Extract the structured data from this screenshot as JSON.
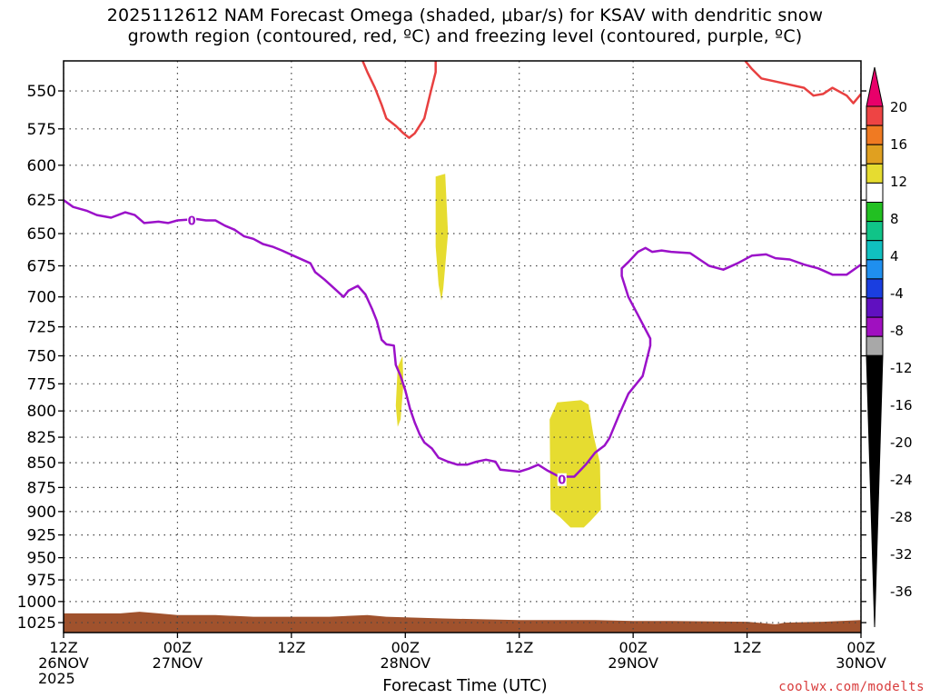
{
  "chart_data": {
    "type": "contour",
    "title": "2025112612 NAM Forecast Omega (shaded, μbar/s) for KSAV with dendritic snow\ngrowth region (contoured, red, ºC) and freezing level (contoured, purple, ºC)",
    "xlabel": "Forecast Time (UTC)",
    "credit": "coolwx.com/modelts",
    "y_axis": {
      "label": "",
      "scale": "pressure",
      "range_hPa": [
        531,
        1037
      ],
      "ticks": [
        "550",
        "575",
        "600",
        "625",
        "650",
        "675",
        "700",
        "725",
        "750",
        "775",
        "800",
        "825",
        "850",
        "875",
        "900",
        "925",
        "950",
        "975",
        "1000",
        "1025"
      ]
    },
    "x_axis": {
      "range_hours": [
        0,
        84
      ],
      "ticks": [
        {
          "hour": 0,
          "lines": [
            "12Z",
            "26NOV",
            "2025"
          ]
        },
        {
          "hour": 12,
          "lines": [
            "00Z",
            "27NOV"
          ]
        },
        {
          "hour": 24,
          "lines": [
            "12Z"
          ]
        },
        {
          "hour": 36,
          "lines": [
            "00Z",
            "28NOV"
          ]
        },
        {
          "hour": 48,
          "lines": [
            "12Z"
          ]
        },
        {
          "hour": 60,
          "lines": [
            "00Z",
            "29NOV"
          ]
        },
        {
          "hour": 72,
          "lines": [
            "12Z"
          ]
        },
        {
          "hour": 84,
          "lines": [
            "00Z",
            "30NOV"
          ]
        }
      ]
    },
    "grid": true,
    "colorbar": {
      "placement": "right",
      "levels": [
        "20",
        "16",
        "12",
        "8",
        "4",
        "-4",
        "-8",
        "-12",
        "-16",
        "-20",
        "-24",
        "-28",
        "-32",
        "-36"
      ],
      "colors": [
        "#e8006a",
        "#ee4444",
        "#f07a22",
        "#e0a020",
        "#e6dc30",
        "#ffffff",
        "#22c022",
        "#10c488",
        "#10c0c0",
        "#1f8fef",
        "#1a3ee0",
        "#6010c0",
        "#a010c0",
        "#a8a8a8",
        "#000000"
      ]
    },
    "freezing_level": {
      "color": "#9b11c9",
      "label": "0",
      "points": [
        [
          0,
          625
        ],
        [
          1,
          630
        ],
        [
          2.5,
          633
        ],
        [
          3.5,
          636
        ],
        [
          5,
          638
        ],
        [
          6.5,
          634
        ],
        [
          7.5,
          636
        ],
        [
          8.5,
          642
        ],
        [
          10,
          641
        ],
        [
          11,
          642
        ],
        [
          12,
          640
        ],
        [
          14,
          639
        ],
        [
          15,
          640
        ],
        [
          16,
          640
        ],
        [
          17,
          644
        ],
        [
          18,
          647
        ],
        [
          19,
          652
        ],
        [
          20,
          654
        ],
        [
          21,
          658
        ],
        [
          22,
          660
        ],
        [
          23,
          663
        ],
        [
          24.5,
          668
        ],
        [
          26,
          673
        ],
        [
          26.5,
          680
        ],
        [
          27.5,
          686
        ],
        [
          28.5,
          693
        ],
        [
          29.5,
          700
        ],
        [
          30,
          695
        ],
        [
          31,
          691
        ],
        [
          31.8,
          698
        ],
        [
          32.5,
          710
        ],
        [
          33,
          720
        ],
        [
          33.5,
          736
        ],
        [
          34,
          740
        ],
        [
          34.8,
          741
        ],
        [
          35,
          758
        ],
        [
          35.5,
          768
        ],
        [
          36,
          781
        ],
        [
          36.5,
          798
        ],
        [
          37,
          811
        ],
        [
          37.5,
          822
        ],
        [
          38,
          830
        ],
        [
          38.8,
          836
        ],
        [
          39.5,
          845
        ],
        [
          40.5,
          849
        ],
        [
          41.5,
          852
        ],
        [
          42.5,
          852
        ],
        [
          43.5,
          849
        ],
        [
          44.5,
          847
        ],
        [
          45.5,
          849
        ],
        [
          46,
          857
        ],
        [
          47,
          858
        ],
        [
          48,
          859
        ],
        [
          49,
          856
        ],
        [
          50,
          852
        ],
        [
          51,
          858
        ],
        [
          52,
          863
        ],
        [
          53,
          864
        ],
        [
          53.8,
          864
        ],
        [
          54,
          862
        ],
        [
          55,
          852
        ],
        [
          56,
          840
        ],
        [
          57,
          833
        ],
        [
          57.5,
          826
        ],
        [
          58.5,
          804
        ],
        [
          59.5,
          784
        ],
        [
          61,
          768
        ],
        [
          61.8,
          741
        ],
        [
          61.8,
          735
        ],
        [
          60.5,
          715
        ],
        [
          59.5,
          700
        ],
        [
          58.8,
          683
        ],
        [
          58.8,
          677
        ],
        [
          59.5,
          672
        ],
        [
          60.5,
          664
        ],
        [
          61.3,
          661
        ],
        [
          62,
          664
        ],
        [
          63,
          663
        ],
        [
          64,
          664
        ],
        [
          66,
          665
        ],
        [
          67,
          670
        ],
        [
          68,
          675
        ],
        [
          69.5,
          678
        ],
        [
          71,
          673
        ],
        [
          72.5,
          667
        ],
        [
          74,
          666
        ],
        [
          75,
          669
        ],
        [
          76.5,
          670
        ],
        [
          78,
          674
        ],
        [
          79.5,
          677
        ],
        [
          81,
          682
        ],
        [
          82.5,
          682
        ],
        [
          84,
          674
        ]
      ],
      "label_points": [
        [
          13.5,
          640
        ],
        [
          52.5,
          867
        ]
      ]
    },
    "dendritic_growth": {
      "color": "#e84040",
      "label": "",
      "segments": [
        [
          [
            31.5,
            531
          ],
          [
            32,
            538
          ],
          [
            32.8,
            548
          ],
          [
            33.5,
            559
          ],
          [
            34,
            568
          ],
          [
            35,
            573
          ],
          [
            35.8,
            578
          ],
          [
            36.4,
            581
          ],
          [
            37,
            578
          ],
          [
            38,
            568
          ],
          [
            38.7,
            550
          ],
          [
            39.2,
            538
          ],
          [
            39.2,
            531
          ]
        ],
        [
          [
            71.8,
            531
          ],
          [
            72.5,
            536
          ],
          [
            73.5,
            542
          ],
          [
            75,
            544
          ],
          [
            76.5,
            546
          ],
          [
            78,
            548
          ],
          [
            79,
            553
          ],
          [
            80,
            552
          ],
          [
            81,
            548
          ],
          [
            82.5,
            553
          ],
          [
            83.2,
            558
          ],
          [
            84,
            552
          ]
        ]
      ]
    },
    "omega_shading": {
      "color": "#e6dc30",
      "polygons": [
        [
          [
            39.2,
            608
          ],
          [
            40.2,
            606
          ],
          [
            40.5,
            650
          ],
          [
            40,
            693
          ],
          [
            39.8,
            703
          ],
          [
            39.5,
            690
          ],
          [
            39.2,
            660
          ]
        ],
        [
          [
            35.2,
            760
          ],
          [
            35.7,
            750
          ],
          [
            35.8,
            775
          ],
          [
            35.5,
            808
          ],
          [
            35.2,
            815
          ],
          [
            35,
            795
          ]
        ],
        [
          [
            51.2,
            808
          ],
          [
            52,
            792
          ],
          [
            54.5,
            790
          ],
          [
            55.3,
            794
          ],
          [
            55.8,
            822
          ],
          [
            56.5,
            850
          ],
          [
            56.6,
            898
          ],
          [
            55.5,
            910
          ],
          [
            54.8,
            917
          ],
          [
            53.4,
            917
          ],
          [
            52.3,
            906
          ],
          [
            51.3,
            898
          ]
        ]
      ]
    },
    "ground": {
      "color": "#a0522d",
      "points": [
        [
          0,
          1014
        ],
        [
          6,
          1014
        ],
        [
          8,
          1012
        ],
        [
          10,
          1014
        ],
        [
          12,
          1016
        ],
        [
          16,
          1016
        ],
        [
          20,
          1018
        ],
        [
          28,
          1018
        ],
        [
          32,
          1016
        ],
        [
          34,
          1018
        ],
        [
          40,
          1020
        ],
        [
          48,
          1022
        ],
        [
          56,
          1022
        ],
        [
          60,
          1023
        ],
        [
          64,
          1023
        ],
        [
          72,
          1024
        ],
        [
          75,
          1027
        ],
        [
          76,
          1025
        ],
        [
          80,
          1024
        ],
        [
          84,
          1022
        ]
      ]
    }
  }
}
